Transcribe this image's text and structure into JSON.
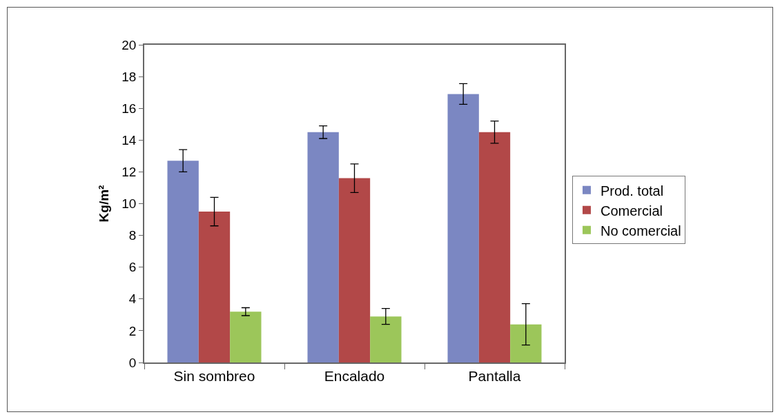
{
  "chart_data": {
    "type": "bar",
    "ylabel": "Kg/m²",
    "categories": [
      "Sin sombreo",
      "Encalado",
      "Pantalla"
    ],
    "series": [
      {
        "name": "Prod. total",
        "color": "#7b87c2",
        "values": [
          12.7,
          14.5,
          16.9
        ],
        "errors": [
          0.7,
          0.4,
          0.65
        ]
      },
      {
        "name": "Comercial",
        "color": "#b24848",
        "values": [
          9.5,
          11.6,
          14.5
        ],
        "errors": [
          0.9,
          0.9,
          0.7
        ]
      },
      {
        "name": "No comercial",
        "color": "#9cc65a",
        "values": [
          3.2,
          2.9,
          2.4
        ],
        "errors": [
          0.25,
          0.5,
          1.3
        ]
      }
    ],
    "ylim": [
      0,
      20
    ],
    "yticks": [
      0,
      2,
      4,
      6,
      8,
      10,
      12,
      14,
      16,
      18,
      20
    ],
    "grid": false,
    "legend": "right"
  }
}
